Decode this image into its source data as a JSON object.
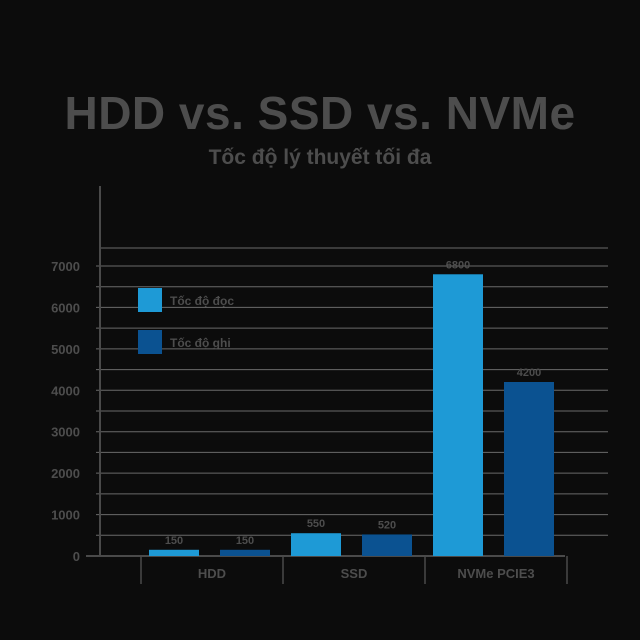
{
  "chart_data": {
    "type": "bar",
    "title": "HDD vs. SSD vs. NVMe",
    "subtitle": "Tốc độ lý thuyết tối đa",
    "categories": [
      "HDD",
      "SSD",
      "NVMe PCIE3"
    ],
    "series": [
      {
        "name": "Tốc độ đọc",
        "values": [
          150,
          550,
          6800
        ],
        "color": "#1e9ad6"
      },
      {
        "name": "Tốc độ ghi",
        "values": [
          150,
          520,
          4200
        ],
        "color": "#0b5291"
      }
    ],
    "value_labels": [
      [
        "150",
        "150"
      ],
      [
        "550",
        "520"
      ],
      [
        "6800",
        "4200"
      ]
    ],
    "yticks": [
      0,
      1000,
      2000,
      3000,
      4000,
      5000,
      6000,
      7000
    ],
    "ylim": [
      0,
      7000
    ],
    "grid": true,
    "legend": "top-left"
  },
  "colors": {
    "background": "#0c0c0c",
    "grid": "#6a6a6a",
    "axis": "#4a4a4a",
    "text": "#4d4d4d"
  }
}
